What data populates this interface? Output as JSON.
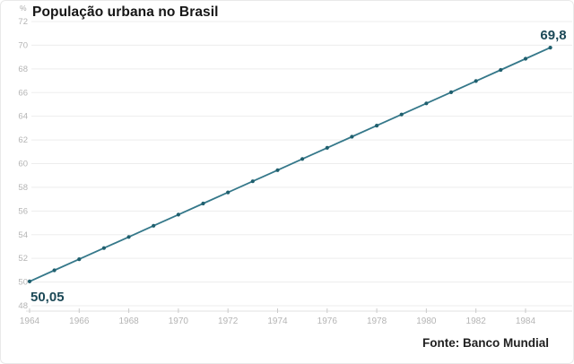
{
  "title": "População urbana no Brasil",
  "unit_label": "%",
  "source": "Fonte: Banco Mundial",
  "colors": {
    "line": "#35788a",
    "point": "#1f5f6e",
    "value_label": "#1c4957",
    "grid": "#ededed",
    "axis_line": "#e2e2e2",
    "tick": "#c9c9c9",
    "axis_text": "#b4b4b4"
  },
  "chart_data": {
    "type": "line",
    "title": "População urbana no Brasil",
    "xlabel": "",
    "ylabel": "%",
    "x": [
      1964,
      1965,
      1966,
      1967,
      1968,
      1969,
      1970,
      1971,
      1972,
      1973,
      1974,
      1975,
      1976,
      1977,
      1978,
      1979,
      1980,
      1981,
      1982,
      1983,
      1984,
      1985
    ],
    "values": [
      50.05,
      50.99,
      51.93,
      52.87,
      53.81,
      54.75,
      55.69,
      56.63,
      57.57,
      58.51,
      59.45,
      60.39,
      61.33,
      62.27,
      63.21,
      64.15,
      65.09,
      66.03,
      66.97,
      67.91,
      68.86,
      69.8
    ],
    "xticks": [
      1964,
      1966,
      1968,
      1970,
      1972,
      1974,
      1976,
      1978,
      1980,
      1982,
      1984
    ],
    "yticks": [
      48,
      50,
      52,
      54,
      56,
      58,
      60,
      62,
      64,
      66,
      68,
      70,
      72
    ],
    "xlim": [
      1964,
      1985
    ],
    "ylim": [
      48,
      72
    ],
    "grid": true,
    "legend_position": "none",
    "annotations": [
      {
        "position": "first",
        "text": "50,05"
      },
      {
        "position": "last",
        "text": "69,8"
      }
    ],
    "source": "Fonte: Banco Mundial"
  }
}
